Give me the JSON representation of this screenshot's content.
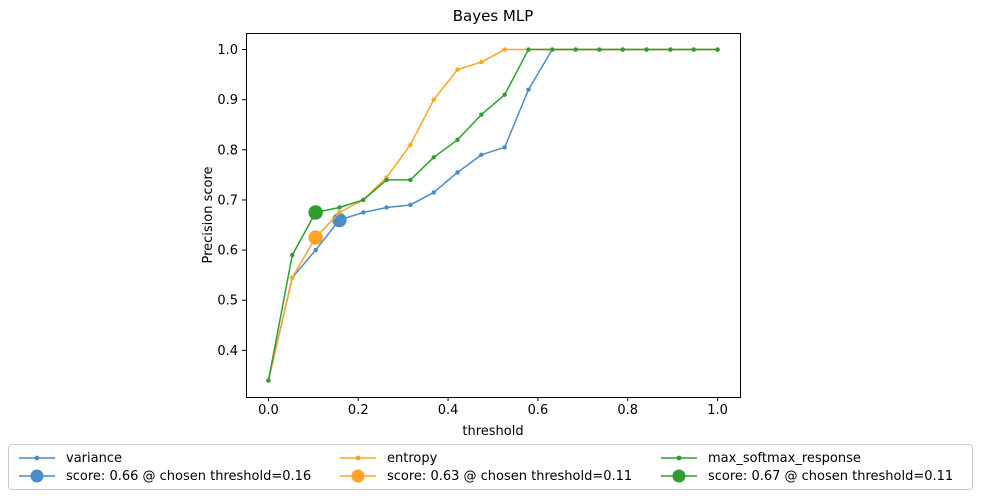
{
  "chart_data": {
    "type": "line",
    "title": "Bayes MLP",
    "xlabel": "threshold",
    "ylabel": "Precision score",
    "xlim": [
      -0.05,
      1.05
    ],
    "ylim": [
      0.307,
      1.033
    ],
    "xticks": [
      0.0,
      0.2,
      0.4,
      0.6,
      0.8,
      1.0
    ],
    "yticks": [
      0.4,
      0.5,
      0.6,
      0.7,
      0.8,
      0.9,
      1.0
    ],
    "grid": false,
    "legend_position": "bottom",
    "x": [
      0.0,
      0.053,
      0.105,
      0.158,
      0.211,
      0.263,
      0.316,
      0.368,
      0.421,
      0.474,
      0.526,
      0.579,
      0.632,
      0.684,
      0.737,
      0.789,
      0.842,
      0.895,
      0.947,
      1.0
    ],
    "series": [
      {
        "name": "variance",
        "color": "#4a8cc7",
        "values": [
          0.34,
          0.545,
          0.6,
          0.66,
          0.675,
          0.685,
          0.69,
          0.715,
          0.755,
          0.79,
          0.805,
          0.92,
          1.0,
          1.0,
          1.0,
          1.0,
          1.0,
          1.0,
          1.0,
          1.0
        ],
        "chosen": {
          "threshold": 0.158,
          "score": 0.66,
          "label": "score: 0.66 @ chosen threshold=0.16"
        }
      },
      {
        "name": "entropy",
        "color": "#ffa424",
        "values": [
          0.34,
          0.545,
          0.625,
          0.675,
          0.7,
          0.745,
          0.81,
          0.9,
          0.96,
          0.975,
          1.0,
          1.0,
          1.0,
          1.0,
          1.0,
          1.0,
          1.0,
          1.0,
          1.0,
          1.0
        ],
        "chosen": {
          "threshold": 0.105,
          "score": 0.625,
          "label": "score: 0.63 @ chosen threshold=0.11"
        }
      },
      {
        "name": "max_softmax_response",
        "color": "#2f9e31",
        "values": [
          0.34,
          0.59,
          0.675,
          0.685,
          0.7,
          0.74,
          0.74,
          0.785,
          0.82,
          0.87,
          0.91,
          1.0,
          1.0,
          1.0,
          1.0,
          1.0,
          1.0,
          1.0,
          1.0,
          1.0
        ],
        "chosen": {
          "threshold": 0.105,
          "score": 0.675,
          "label": "score: 0.67 @ chosen threshold=0.11"
        }
      }
    ]
  }
}
